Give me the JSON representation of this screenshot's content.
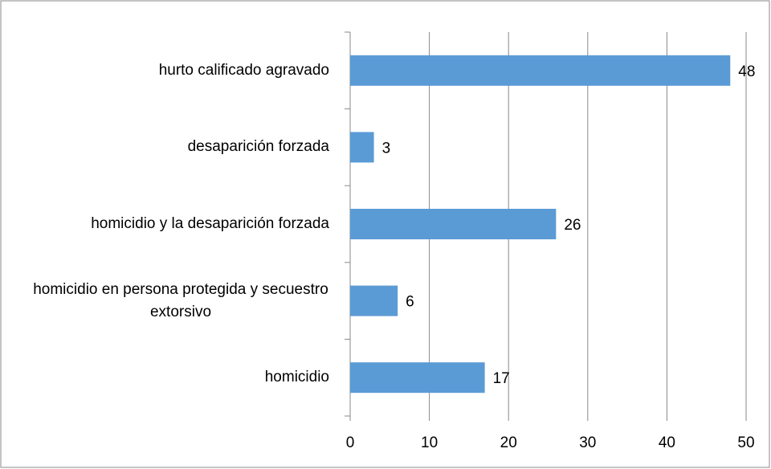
{
  "chart_data": {
    "type": "bar",
    "orientation": "horizontal",
    "categories": [
      "hurto calificado agravado",
      "desaparición forzada",
      "homicidio y la desaparición forzada",
      "homicidio en persona protegida y secuestro extorsivo",
      "homicidio"
    ],
    "values": [
      48,
      3,
      26,
      6,
      17
    ],
    "color": "#5b9bd5",
    "xlim": [
      0,
      50
    ],
    "xticks": [
      0,
      10,
      20,
      30,
      40,
      50
    ],
    "grid": true
  }
}
